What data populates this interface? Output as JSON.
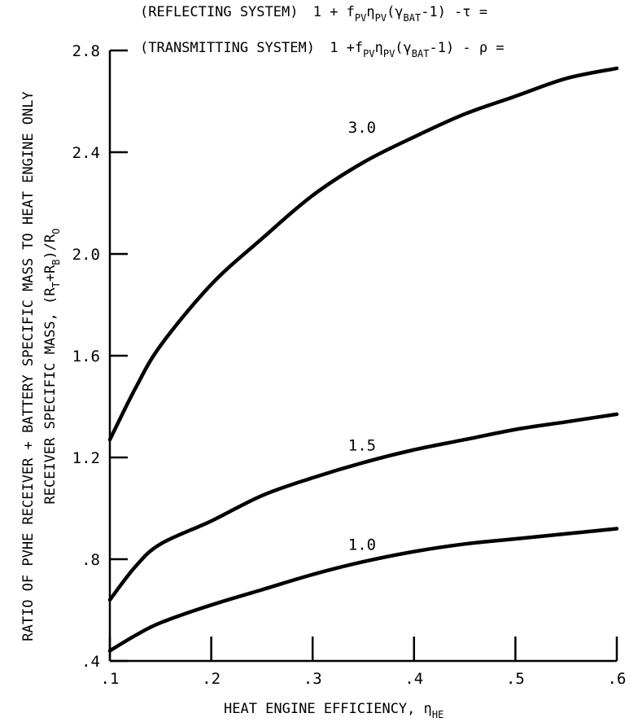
{
  "chart_data": {
    "type": "line",
    "header": {
      "line1": {
        "label": "(REFLECTING SYSTEM)",
        "formula": "1 + f",
        "f_sub": "PV",
        "eta": "η",
        "eta_sub": "PV",
        "gamma": "(γ",
        "gamma_sub": "BAT",
        "tail": "-1)  -τ ="
      },
      "line2": {
        "label": "(TRANSMITTING SYSTEM)",
        "formula": "1 +f",
        "f_sub": "PV",
        "eta": "η",
        "eta_sub": "PV",
        "gamma": "(γ",
        "gamma_sub": "BAT",
        "tail": "-1)  - ρ ="
      }
    },
    "xlabel": {
      "text": "HEAT ENGINE EFFICIENCY, η",
      "sub": "HE"
    },
    "ylabel": {
      "line1": "RATIO OF PVHE RECEIVER + BATTERY SPECIFIC MASS TO HEAT ENGINE ONLY",
      "line2_text": "RECEIVER SPECIFIC MASS, (R",
      "line2_sub1": "T",
      "line2_mid": "+R",
      "line2_sub2": "B",
      "line2_tail": ")/R",
      "line2_sub3": "O"
    },
    "xlim": [
      0.1,
      0.6
    ],
    "ylim": [
      0.4,
      2.8
    ],
    "xticks": [
      0.1,
      0.2,
      0.3,
      0.4,
      0.5,
      0.6
    ],
    "xtick_labels": [
      ".1",
      ".2",
      ".3",
      ".4",
      ".5",
      ".6"
    ],
    "yticks": [
      0.4,
      0.8,
      1.2,
      1.6,
      2.0,
      2.4,
      2.8
    ],
    "ytick_labels": [
      ".4",
      ".8",
      "1.2",
      "1.6",
      "2.0",
      "2.4",
      "2.8"
    ],
    "grid": false,
    "series": [
      {
        "name": "3.0",
        "x": [
          0.1,
          0.125,
          0.15,
          0.2,
          0.25,
          0.3,
          0.35,
          0.4,
          0.45,
          0.5,
          0.55,
          0.6
        ],
        "y": [
          1.27,
          1.47,
          1.64,
          1.88,
          2.06,
          2.23,
          2.36,
          2.46,
          2.55,
          2.62,
          2.69,
          2.73
        ]
      },
      {
        "name": "1.5",
        "x": [
          0.1,
          0.125,
          0.15,
          0.2,
          0.25,
          0.3,
          0.35,
          0.4,
          0.45,
          0.5,
          0.55,
          0.6
        ],
        "y": [
          0.64,
          0.77,
          0.86,
          0.95,
          1.05,
          1.12,
          1.18,
          1.23,
          1.27,
          1.31,
          1.34,
          1.37
        ]
      },
      {
        "name": "1.0",
        "x": [
          0.1,
          0.125,
          0.15,
          0.2,
          0.25,
          0.3,
          0.35,
          0.4,
          0.45,
          0.5,
          0.55,
          0.6
        ],
        "y": [
          0.44,
          0.5,
          0.55,
          0.62,
          0.68,
          0.74,
          0.79,
          0.83,
          0.86,
          0.88,
          0.9,
          0.92
        ]
      }
    ],
    "curve_labels": [
      {
        "text": "3.0",
        "x": 0.335,
        "y": 2.5
      },
      {
        "text": "1.5",
        "x": 0.335,
        "y": 1.25
      },
      {
        "text": "1.0",
        "x": 0.335,
        "y": 0.86
      }
    ]
  }
}
